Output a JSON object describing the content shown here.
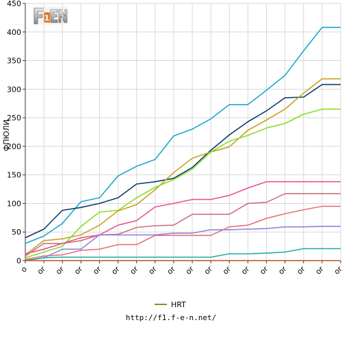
{
  "logo_text": "F1EN",
  "footer_url": "http://f1.f-e-n.net/",
  "chart_data": {
    "type": "line",
    "ylabel": "ФПЮЛИ",
    "xlabel": "",
    "ylim": [
      0,
      450
    ],
    "y_ticks": [
      0,
      50,
      100,
      150,
      200,
      250,
      300,
      350,
      400,
      450
    ],
    "x": [
      0,
      1,
      2,
      3,
      4,
      5,
      6,
      7,
      8,
      9,
      10,
      11,
      12,
      13,
      14,
      15,
      16,
      17
    ],
    "x_tick_labels": [
      "o",
      "or",
      "or",
      "or",
      "or",
      "or",
      "or",
      "or",
      "or",
      "or",
      "or",
      "or",
      "or",
      "or",
      "or",
      "or",
      "or",
      "or"
    ],
    "grid": true,
    "legend_position": "bottom-center",
    "series": [
      {
        "color": "#1aa7d0",
        "values": [
          30,
          43,
          65,
          103,
          110,
          148,
          165,
          177,
          218,
          230,
          248,
          273,
          273,
          298,
          324,
          367,
          408,
          408
        ]
      },
      {
        "color": "#0d3a66",
        "values": [
          40,
          55,
          88,
          93,
          100,
          110,
          134,
          138,
          144,
          163,
          193,
          220,
          243,
          262,
          285,
          286,
          308,
          308
        ]
      },
      {
        "color": "#c8a020",
        "values": [
          10,
          35,
          38,
          45,
          62,
          87,
          98,
          124,
          154,
          179,
          190,
          199,
          228,
          246,
          265,
          293,
          318,
          318
        ]
      },
      {
        "name": "HRT",
        "color": "#88dd22",
        "values": [
          5,
          15,
          25,
          60,
          85,
          88,
          110,
          128,
          142,
          160,
          190,
          209,
          219,
          232,
          240,
          256,
          265,
          265
        ]
      },
      {
        "color": "#e8509a",
        "values": [
          12,
          20,
          30,
          40,
          45,
          62,
          70,
          94,
          100,
          107,
          107,
          114,
          127,
          138,
          138,
          138,
          138,
          138
        ]
      },
      {
        "color": "#c8707a",
        "values": [
          8,
          30,
          30,
          35,
          45,
          46,
          58,
          61,
          62,
          81,
          81,
          81,
          100,
          102,
          117,
          117,
          117,
          117
        ]
      },
      {
        "color": "#e87070",
        "values": [
          2,
          8,
          10,
          18,
          20,
          28,
          28,
          44,
          44,
          44,
          44,
          59,
          62,
          74,
          82,
          89,
          95,
          95
        ]
      },
      {
        "color": "#9080e0",
        "values": [
          0,
          5,
          20,
          20,
          45,
          45,
          45,
          45,
          48,
          48,
          54,
          54,
          55,
          56,
          59,
          59,
          60,
          60
        ]
      },
      {
        "color": "#20a8a8",
        "values": [
          0,
          5,
          6,
          6,
          6,
          6,
          6,
          6,
          6,
          6,
          6,
          12,
          12,
          13,
          15,
          21,
          21,
          21
        ]
      },
      {
        "color": "#b85020",
        "values": [
          0,
          0,
          0,
          0,
          0,
          0,
          0,
          0,
          0,
          0,
          0,
          0,
          0,
          0,
          0,
          0,
          0,
          0
        ]
      }
    ]
  }
}
